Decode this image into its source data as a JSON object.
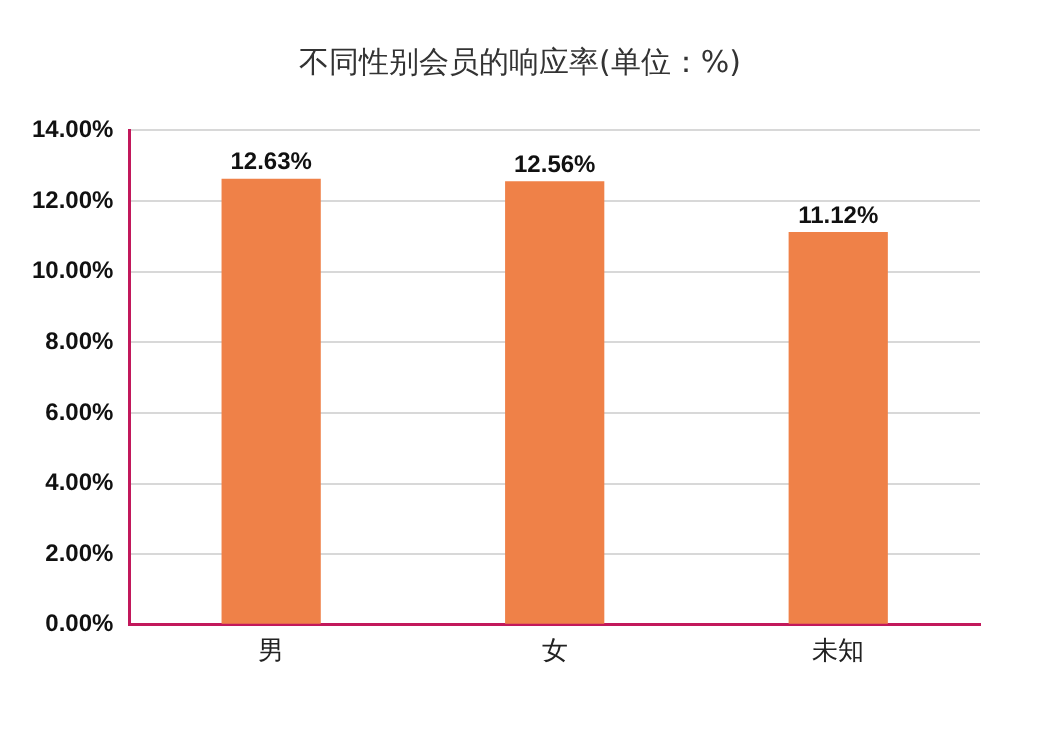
{
  "chart_data": {
    "type": "bar",
    "title": "不同性别会员的响应率(单位：%)",
    "categories": [
      "男",
      "女",
      "未知"
    ],
    "values": [
      12.63,
      12.56,
      11.12
    ],
    "value_labels": [
      "12.63%",
      "12.56%",
      "11.12%"
    ],
    "color": "#ef8148",
    "ylim": [
      0,
      14
    ],
    "yticks": [
      {
        "value": 0,
        "label": "0.00%"
      },
      {
        "value": 2,
        "label": "2.00%"
      },
      {
        "value": 4,
        "label": "4.00%"
      },
      {
        "value": 6,
        "label": "6.00%"
      },
      {
        "value": 8,
        "label": "8.00%"
      },
      {
        "value": 10,
        "label": "10.00%"
      },
      {
        "value": 12,
        "label": "12.00%"
      },
      {
        "value": 14,
        "label": "14.00%"
      }
    ],
    "grid": "y"
  }
}
